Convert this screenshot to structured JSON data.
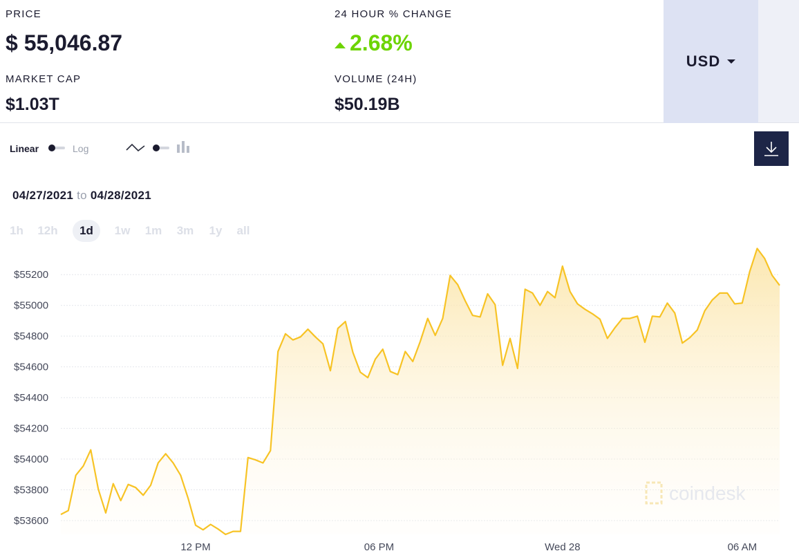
{
  "stats": {
    "price_label": "PRICE",
    "price_value": "$ 55,046.87",
    "change_label": "24 HOUR % CHANGE",
    "change_value": "2.68%",
    "market_cap_label": "MARKET CAP",
    "market_cap_value": "$1.03T",
    "volume_label": "VOLUME (24H)",
    "volume_value": "$50.19B"
  },
  "currency": {
    "selected": "USD"
  },
  "toolbar": {
    "linear_label": "Linear",
    "log_label": "Log"
  },
  "date_range": {
    "from": "04/27/2021",
    "to_word": "to",
    "to": "04/28/2021"
  },
  "ranges": [
    "1h",
    "12h",
    "1d",
    "1w",
    "1m",
    "3m",
    "1y",
    "all"
  ],
  "active_range": "1d",
  "watermark": "coindesk",
  "colors": {
    "line": "#f7c325",
    "positive": "#6dd400",
    "accent": "#1d2547"
  },
  "chart_data": {
    "type": "area",
    "x_tick_labels": [
      "12 PM",
      "06 PM",
      "Wed 28",
      "06 AM"
    ],
    "y_ticks": [
      53600,
      53800,
      54000,
      54200,
      54400,
      54600,
      54800,
      55000,
      55200
    ],
    "y_tick_labels": [
      "$53600",
      "$53800",
      "$54000",
      "$54200",
      "$54400",
      "$54600",
      "$54800",
      "$55000",
      "$55200"
    ],
    "ylim": [
      53510,
      55390
    ],
    "grid": true,
    "series": [
      {
        "values": [
          53640,
          53665,
          53895,
          53955,
          54060,
          53805,
          53650,
          53840,
          53730,
          53835,
          53815,
          53765,
          53830,
          53975,
          54035,
          53975,
          53895,
          53745,
          53570,
          53540,
          53575,
          53545,
          53510,
          53530,
          53530,
          54010,
          53995,
          53975,
          54055,
          54700,
          54815,
          54775,
          54795,
          54845,
          54795,
          54750,
          54575,
          54850,
          54895,
          54695,
          54565,
          54530,
          54650,
          54715,
          54570,
          54550,
          54700,
          54635,
          54765,
          54915,
          54805,
          54915,
          55195,
          55135,
          55030,
          54935,
          54925,
          55075,
          55005,
          54610,
          54785,
          54590,
          55105,
          55080,
          55000,
          55090,
          55050,
          55255,
          55090,
          55010,
          54975,
          54945,
          54910,
          54785,
          54855,
          54915,
          54915,
          54930,
          54760,
          54930,
          54925,
          55015,
          54950,
          54755,
          54790,
          54840,
          54965,
          55035,
          55080,
          55080,
          55010,
          55015,
          55220,
          55370,
          55305,
          55195,
          55130
        ]
      }
    ]
  }
}
